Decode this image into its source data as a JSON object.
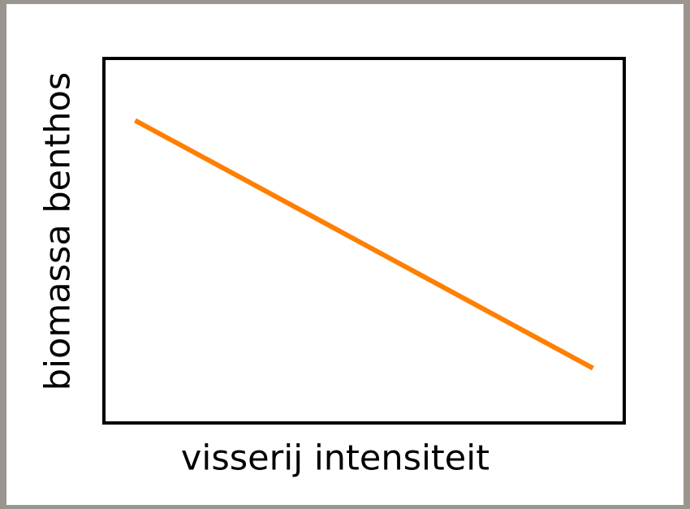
{
  "chart_data": {
    "type": "line",
    "x_label": "visserij intensiteit",
    "y_label": "biomassa benthos",
    "x": [
      0.06,
      0.94
    ],
    "series": [
      {
        "values": [
          0.83,
          0.15
        ],
        "color": "#ff7f00"
      }
    ],
    "xlim": [
      0,
      1
    ],
    "ylim": [
      0,
      1
    ]
  }
}
